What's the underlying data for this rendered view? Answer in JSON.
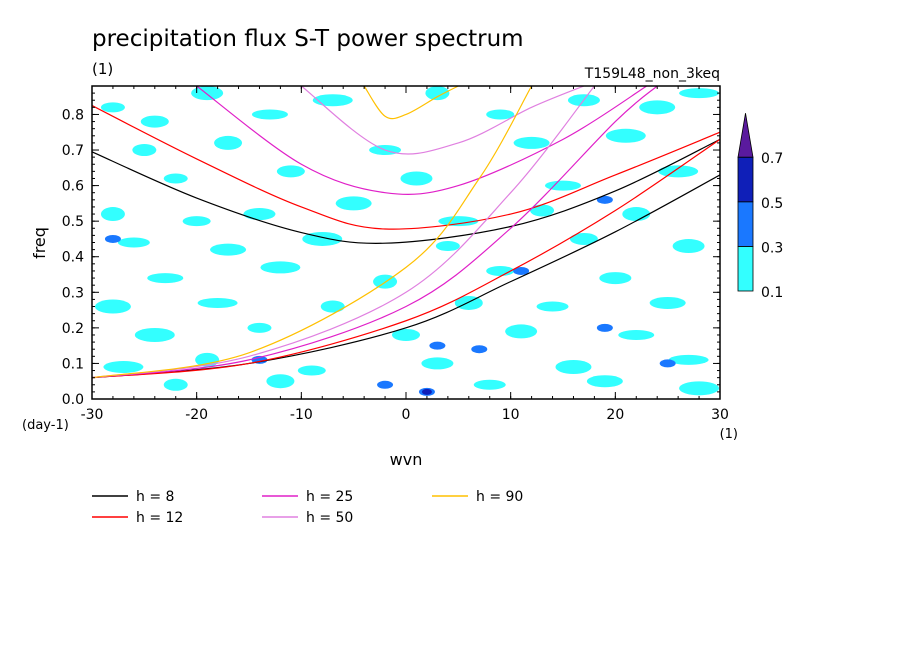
{
  "chart_data": {
    "type": "heatmap",
    "title": "precipitation flux S-T power spectrum",
    "subtitle_left": "(1)",
    "subtitle_right": "T159L48_non_3keq",
    "xlabel": "wvn",
    "ylabel": "freq",
    "x_unit_label": "(1)",
    "y_unit_label": "(day-1)",
    "xlim": [
      -30,
      30
    ],
    "ylim": [
      0,
      0.88
    ],
    "x_ticks": [
      -30,
      -20,
      -10,
      0,
      10,
      20,
      30
    ],
    "x_tick_labels": [
      "-30",
      "-20",
      "-10",
      "0",
      "10",
      "20",
      "30"
    ],
    "y_ticks": [
      0,
      0.1,
      0.2,
      0.3,
      0.4,
      0.5,
      0.6,
      0.7,
      0.8
    ],
    "y_tick_labels": [
      "0.0",
      "0.1",
      "0.2",
      "0.3",
      "0.4",
      "0.5",
      "0.6",
      "0.7",
      "0.8"
    ],
    "colorbar": {
      "levels": [
        0.1,
        0.3,
        0.5,
        0.7
      ],
      "level_labels": [
        "0.1",
        "0.3",
        "0.5",
        "0.7"
      ],
      "colors": [
        "#ffffff",
        "#33ffff",
        "#1a78ff",
        "#0f1fb8",
        "#5a1a9e"
      ],
      "extend": "max"
    },
    "shaded_regions": [
      {
        "level": 0.1,
        "x": -28,
        "y": 0.82
      },
      {
        "level": 0.1,
        "x": -24,
        "y": 0.78
      },
      {
        "level": 0.1,
        "x": -19,
        "y": 0.86
      },
      {
        "level": 0.1,
        "x": -13,
        "y": 0.8
      },
      {
        "level": 0.1,
        "x": -7,
        "y": 0.84
      },
      {
        "level": 0.1,
        "x": 3,
        "y": 0.86
      },
      {
        "level": 0.1,
        "x": 9,
        "y": 0.8
      },
      {
        "level": 0.1,
        "x": 17,
        "y": 0.84
      },
      {
        "level": 0.1,
        "x": 24,
        "y": 0.82
      },
      {
        "level": 0.1,
        "x": 28,
        "y": 0.86
      },
      {
        "level": 0.1,
        "x": -25,
        "y": 0.7
      },
      {
        "level": 0.1,
        "x": -17,
        "y": 0.72
      },
      {
        "level": 0.1,
        "x": -2,
        "y": 0.7
      },
      {
        "level": 0.1,
        "x": 12,
        "y": 0.72
      },
      {
        "level": 0.1,
        "x": 21,
        "y": 0.74
      },
      {
        "level": 0.1,
        "x": -22,
        "y": 0.62
      },
      {
        "level": 0.1,
        "x": -11,
        "y": 0.64
      },
      {
        "level": 0.1,
        "x": 1,
        "y": 0.62
      },
      {
        "level": 0.1,
        "x": 15,
        "y": 0.6
      },
      {
        "level": 0.1,
        "x": 26,
        "y": 0.64
      },
      {
        "level": 0.1,
        "x": -28,
        "y": 0.52
      },
      {
        "level": 0.1,
        "x": -20,
        "y": 0.5
      },
      {
        "level": 0.1,
        "x": -14,
        "y": 0.52
      },
      {
        "level": 0.1,
        "x": -5,
        "y": 0.55
      },
      {
        "level": 0.1,
        "x": 5,
        "y": 0.5
      },
      {
        "level": 0.1,
        "x": 13,
        "y": 0.53
      },
      {
        "level": 0.1,
        "x": 22,
        "y": 0.52
      },
      {
        "level": 0.1,
        "x": -26,
        "y": 0.44
      },
      {
        "level": 0.1,
        "x": -17,
        "y": 0.42
      },
      {
        "level": 0.1,
        "x": -8,
        "y": 0.45
      },
      {
        "level": 0.1,
        "x": 4,
        "y": 0.43
      },
      {
        "level": 0.1,
        "x": 17,
        "y": 0.45
      },
      {
        "level": 0.1,
        "x": 27,
        "y": 0.43
      },
      {
        "level": 0.1,
        "x": -23,
        "y": 0.34
      },
      {
        "level": 0.1,
        "x": -12,
        "y": 0.37
      },
      {
        "level": 0.1,
        "x": -2,
        "y": 0.33
      },
      {
        "level": 0.1,
        "x": 9,
        "y": 0.36
      },
      {
        "level": 0.1,
        "x": 20,
        "y": 0.34
      },
      {
        "level": 0.1,
        "x": -28,
        "y": 0.26
      },
      {
        "level": 0.1,
        "x": -18,
        "y": 0.27
      },
      {
        "level": 0.1,
        "x": -7,
        "y": 0.26
      },
      {
        "level": 0.1,
        "x": 6,
        "y": 0.27
      },
      {
        "level": 0.1,
        "x": 14,
        "y": 0.26
      },
      {
        "level": 0.1,
        "x": 25,
        "y": 0.27
      },
      {
        "level": 0.1,
        "x": -24,
        "y": 0.18
      },
      {
        "level": 0.1,
        "x": -14,
        "y": 0.2
      },
      {
        "level": 0.1,
        "x": 0,
        "y": 0.18
      },
      {
        "level": 0.1,
        "x": 11,
        "y": 0.19
      },
      {
        "level": 0.1,
        "x": 22,
        "y": 0.18
      },
      {
        "level": 0.1,
        "x": -27,
        "y": 0.09
      },
      {
        "level": 0.1,
        "x": -19,
        "y": 0.11
      },
      {
        "level": 0.1,
        "x": -9,
        "y": 0.08
      },
      {
        "level": 0.1,
        "x": 3,
        "y": 0.1
      },
      {
        "level": 0.1,
        "x": 16,
        "y": 0.09
      },
      {
        "level": 0.1,
        "x": 27,
        "y": 0.11
      },
      {
        "level": 0.1,
        "x": -22,
        "y": 0.04
      },
      {
        "level": 0.1,
        "x": -12,
        "y": 0.05
      },
      {
        "level": 0.1,
        "x": 8,
        "y": 0.04
      },
      {
        "level": 0.1,
        "x": 19,
        "y": 0.05
      },
      {
        "level": 0.1,
        "x": 28,
        "y": 0.03
      },
      {
        "level": 0.3,
        "x": 2,
        "y": 0.02
      },
      {
        "level": 0.3,
        "x": 19,
        "y": 0.56
      },
      {
        "level": 0.3,
        "x": 11,
        "y": 0.36
      },
      {
        "level": 0.3,
        "x": 7,
        "y": 0.14
      },
      {
        "level": 0.3,
        "x": -28,
        "y": 0.45
      },
      {
        "level": 0.3,
        "x": -14,
        "y": 0.11
      },
      {
        "level": 0.3,
        "x": 3,
        "y": 0.15
      },
      {
        "level": 0.3,
        "x": -2,
        "y": 0.04
      },
      {
        "level": 0.3,
        "x": 19,
        "y": 0.2
      },
      {
        "level": 0.3,
        "x": 25,
        "y": 0.1
      },
      {
        "level": 0.5,
        "x": 2,
        "y": 0.02
      }
    ],
    "series": [
      {
        "name": "h = 8",
        "color": "#000000",
        "equivalent_depth_m": 8
      },
      {
        "name": "h = 12",
        "color": "#ff0000",
        "equivalent_depth_m": 12
      },
      {
        "name": "h = 25",
        "color": "#e020c8",
        "equivalent_depth_m": 25
      },
      {
        "name": "h = 50",
        "color": "#e080e0",
        "equivalent_depth_m": 50
      },
      {
        "name": "h = 90",
        "color": "#ffc000",
        "equivalent_depth_m": 90
      }
    ],
    "curves": [
      {
        "series": "h = 8",
        "kind": "inertia-gravity",
        "x": [
          -30,
          -20,
          -10,
          -2,
          10,
          20,
          30
        ],
        "y": [
          0.695,
          0.565,
          0.468,
          0.438,
          0.485,
          0.585,
          0.73
        ]
      },
      {
        "series": "h = 8",
        "kind": "kelvin",
        "x": [
          -30,
          -15,
          0,
          10,
          20,
          30
        ],
        "y": [
          0.06,
          0.1,
          0.2,
          0.33,
          0.47,
          0.63
        ]
      },
      {
        "series": "h = 12",
        "kind": "inertia-gravity",
        "x": [
          -30,
          -20,
          -10,
          -2,
          10,
          20,
          30
        ],
        "y": [
          0.825,
          0.675,
          0.54,
          0.478,
          0.52,
          0.63,
          0.75
        ]
      },
      {
        "series": "h = 12",
        "kind": "kelvin",
        "x": [
          -30,
          -15,
          0,
          10,
          20,
          30
        ],
        "y": [
          0.06,
          0.1,
          0.22,
          0.36,
          0.53,
          0.73
        ]
      },
      {
        "series": "h = 25",
        "kind": "inertia-gravity",
        "x": [
          -20,
          -10,
          -2,
          5,
          15,
          23
        ],
        "y": [
          0.88,
          0.66,
          0.58,
          0.6,
          0.73,
          0.88
        ]
      },
      {
        "series": "h = 25",
        "kind": "kelvin",
        "x": [
          -30,
          -15,
          0,
          10,
          20,
          24
        ],
        "y": [
          0.06,
          0.11,
          0.26,
          0.48,
          0.78,
          0.88
        ]
      },
      {
        "series": "h = 50",
        "kind": "inertia-gravity",
        "x": [
          -10,
          -2,
          5,
          12,
          17
        ],
        "y": [
          0.88,
          0.7,
          0.72,
          0.82,
          0.88
        ]
      },
      {
        "series": "h = 50",
        "kind": "kelvin",
        "x": [
          -30,
          -15,
          0,
          10,
          18
        ],
        "y": [
          0.06,
          0.12,
          0.3,
          0.58,
          0.88
        ]
      },
      {
        "series": "h = 90",
        "kind": "inertia-gravity",
        "x": [
          -4,
          -2,
          0,
          3,
          5
        ],
        "y": [
          0.88,
          0.795,
          0.8,
          0.85,
          0.88
        ]
      },
      {
        "series": "h = 90",
        "kind": "kelvin",
        "x": [
          -30,
          -15,
          0,
          7,
          12
        ],
        "y": [
          0.06,
          0.13,
          0.37,
          0.62,
          0.88
        ]
      }
    ],
    "grid": false,
    "legend_position": "bottom-left"
  }
}
